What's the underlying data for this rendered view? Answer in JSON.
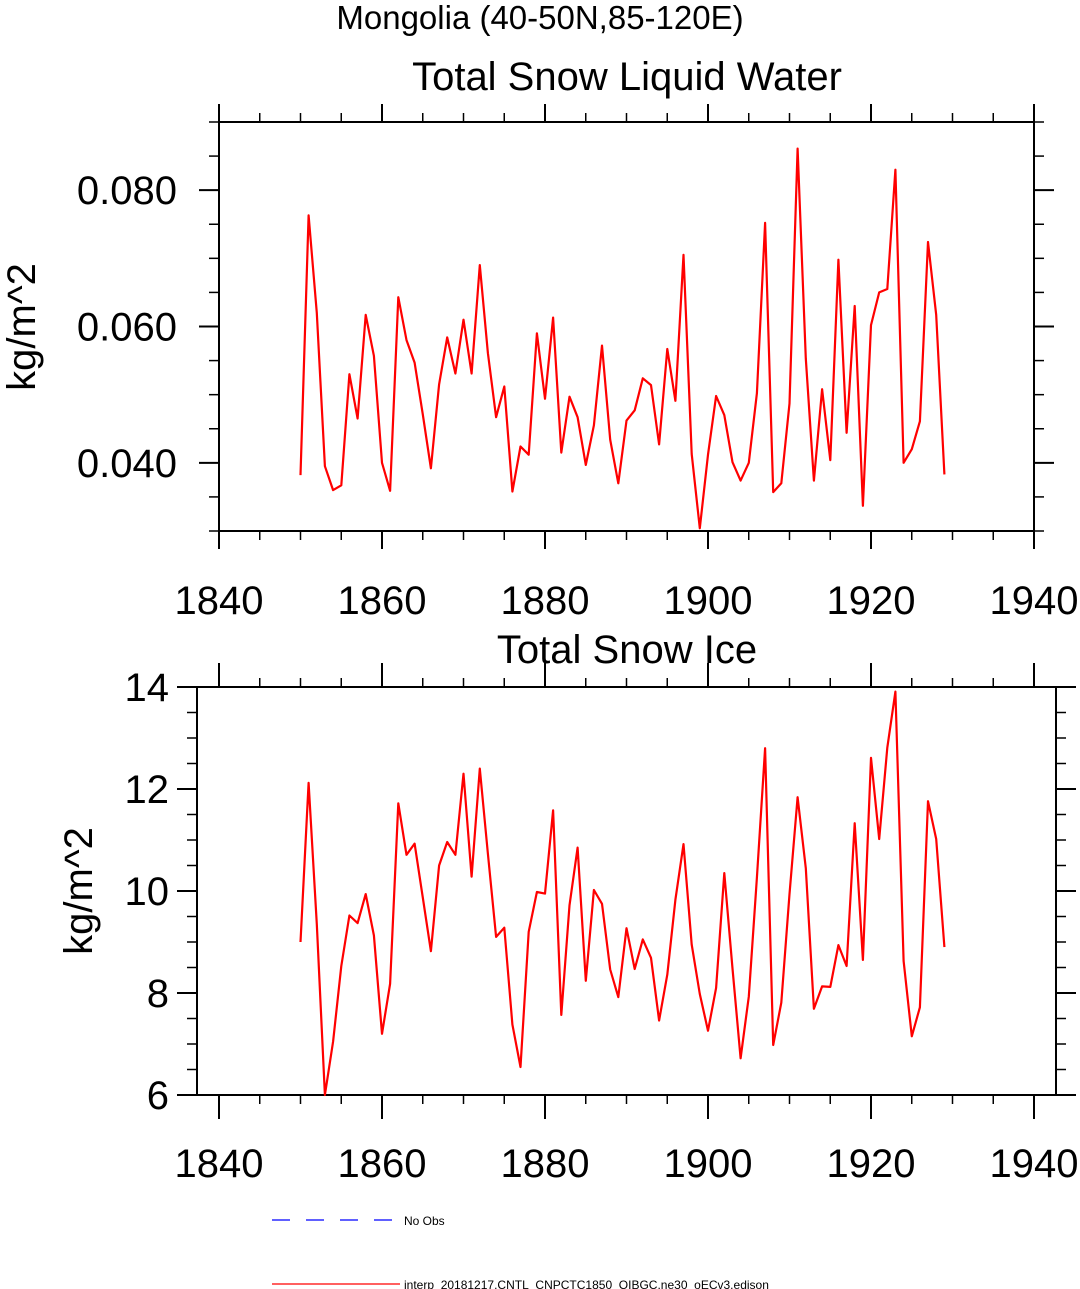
{
  "figure_title": "Mongolia (40-50N,85-120E)",
  "chart_data": [
    {
      "type": "line",
      "title": "Total Snow Liquid Water",
      "xlabel": "",
      "ylabel": "kg/m^2",
      "xlim": [
        1840,
        1940
      ],
      "ylim": [
        0.03,
        0.09
      ],
      "xticks": [
        1840,
        1860,
        1880,
        1900,
        1920,
        1940
      ],
      "xtick_labels": [
        "1840",
        "1860",
        "1880",
        "1900",
        "1920",
        "1940"
      ],
      "yticks": [
        0.04,
        0.06,
        0.08
      ],
      "ytick_labels": [
        "0.040",
        "0.060",
        "0.080"
      ],
      "grid": false,
      "series": [
        {
          "name": "interp_20181217.CNTL_CNPCTC1850_OIBGC.ne30_oECv3.edison",
          "color": "#ff0000",
          "x_start": 1850,
          "x_step": 1,
          "values": [
            0.0382,
            0.0763,
            0.062,
            0.0395,
            0.036,
            0.0367,
            0.053,
            0.0465,
            0.0617,
            0.0557,
            0.04,
            0.0359,
            0.0643,
            0.058,
            0.0547,
            0.0471,
            0.0392,
            0.0515,
            0.0584,
            0.0531,
            0.061,
            0.0531,
            0.069,
            0.0561,
            0.0467,
            0.0512,
            0.0358,
            0.0424,
            0.0412,
            0.059,
            0.0494,
            0.0613,
            0.0415,
            0.0497,
            0.0467,
            0.0397,
            0.0455,
            0.0572,
            0.0434,
            0.037,
            0.0462,
            0.0477,
            0.0524,
            0.0514,
            0.0427,
            0.0567,
            0.0491,
            0.0705,
            0.0413,
            0.0304,
            0.0412,
            0.0498,
            0.047,
            0.0401,
            0.0374,
            0.04,
            0.0502,
            0.0752,
            0.0357,
            0.037,
            0.0487,
            0.0861,
            0.0553,
            0.0374,
            0.0508,
            0.0404,
            0.0698,
            0.0444,
            0.063,
            0.0337,
            0.0602,
            0.065,
            0.0655,
            0.083,
            0.04,
            0.042,
            0.0461,
            0.0724,
            0.0617,
            0.0383
          ]
        }
      ]
    },
    {
      "type": "line",
      "title": "Total Snow Ice",
      "xlabel": "",
      "ylabel": "kg/m^2",
      "xlim": [
        1840,
        1940
      ],
      "ylim": [
        6,
        14
      ],
      "xticks": [
        1840,
        1860,
        1880,
        1900,
        1920,
        1940
      ],
      "xtick_labels": [
        "1840",
        "1860",
        "1880",
        "1900",
        "1920",
        "1940"
      ],
      "yticks": [
        6,
        8,
        10,
        12,
        14
      ],
      "ytick_labels": [
        "6",
        "8",
        "10",
        "12",
        "14"
      ],
      "grid": false,
      "series": [
        {
          "name": "interp_20181217.CNTL_CNPCTC1850_OIBGC.ne30_oECv3.edison",
          "color": "#ff0000",
          "x_start": 1850,
          "x_step": 1,
          "values": [
            9.0,
            12.12,
            9.35,
            6.0,
            7.05,
            8.53,
            9.52,
            9.37,
            9.94,
            9.13,
            7.2,
            8.18,
            11.72,
            10.71,
            10.93,
            9.87,
            8.82,
            10.5,
            10.96,
            10.71,
            12.3,
            10.28,
            12.4,
            10.73,
            9.1,
            9.28,
            7.38,
            6.55,
            9.2,
            9.98,
            9.95,
            11.58,
            7.57,
            9.72,
            10.85,
            8.24,
            10.02,
            9.75,
            8.46,
            7.92,
            9.27,
            8.47,
            9.05,
            8.69,
            7.46,
            8.36,
            9.83,
            10.92,
            8.95,
            7.98,
            7.26,
            8.1,
            10.35,
            8.48,
            6.72,
            7.93,
            10.26,
            12.8,
            6.98,
            7.81,
            9.94,
            11.84,
            10.45,
            7.69,
            8.13,
            8.12,
            8.94,
            8.53,
            11.33,
            8.65,
            12.61,
            11.02,
            12.81,
            13.91,
            8.63,
            7.15,
            7.72,
            11.76,
            11.02,
            8.9
          ]
        }
      ]
    }
  ],
  "legend": {
    "placement": "bottom-left",
    "entries": [
      {
        "label": "No Obs",
        "color": "#0000ff",
        "style": "dashed"
      },
      {
        "label": "interp_20181217.CNTL_CNPCTC1850_OIBGC.ne30_oECv3.edison",
        "color": "#ff0000",
        "style": "solid"
      }
    ]
  }
}
